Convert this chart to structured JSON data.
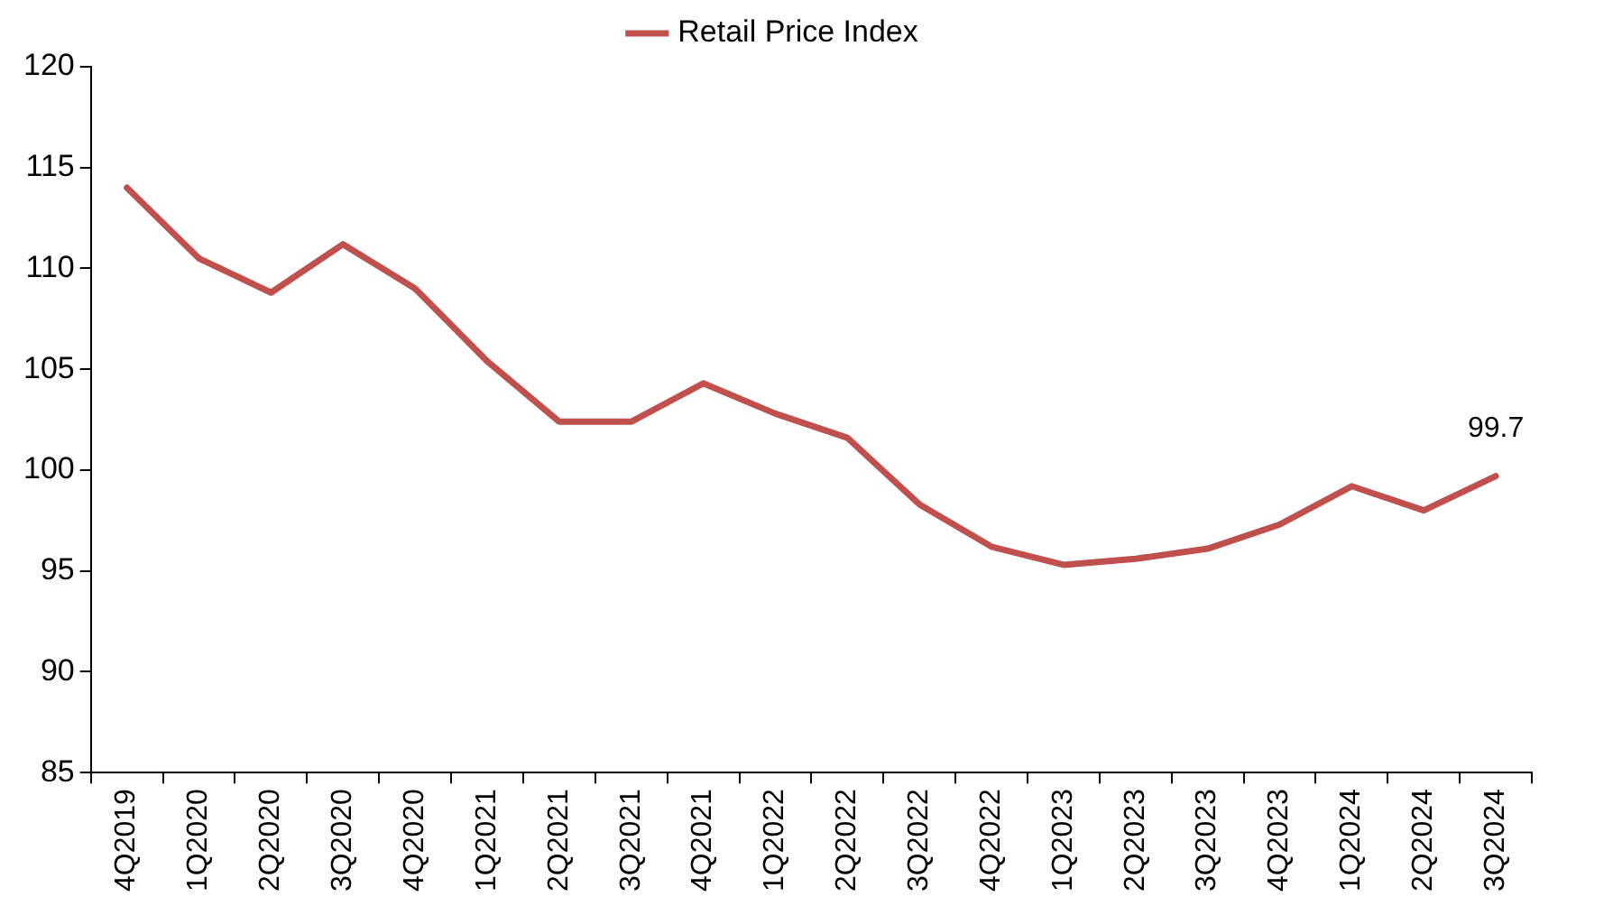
{
  "chart_data": {
    "type": "line",
    "categories": [
      "4Q2019",
      "1Q2020",
      "2Q2020",
      "3Q2020",
      "4Q2020",
      "1Q2021",
      "2Q2021",
      "3Q2021",
      "4Q2021",
      "1Q2022",
      "2Q2022",
      "3Q2022",
      "4Q2022",
      "1Q2023",
      "2Q2023",
      "3Q2023",
      "4Q2023",
      "1Q2024",
      "2Q2024",
      "3Q2024"
    ],
    "series": [
      {
        "name": "Retail Price Index",
        "color": "#c0504d",
        "values": [
          114.0,
          110.5,
          108.8,
          111.2,
          109.0,
          105.4,
          102.4,
          102.4,
          104.3,
          102.8,
          101.6,
          98.3,
          96.2,
          95.3,
          95.6,
          96.1,
          97.3,
          99.2,
          98.0,
          99.7
        ],
        "value_labels": [
          null,
          null,
          null,
          null,
          null,
          null,
          null,
          null,
          null,
          null,
          null,
          null,
          null,
          null,
          null,
          null,
          null,
          null,
          null,
          "99.7"
        ]
      }
    ],
    "ylim": [
      85,
      120
    ],
    "yticks": [
      85,
      90,
      95,
      100,
      105,
      110,
      115,
      120
    ],
    "grid": false,
    "legend": "top",
    "marker": "none",
    "line_style": "solid"
  }
}
